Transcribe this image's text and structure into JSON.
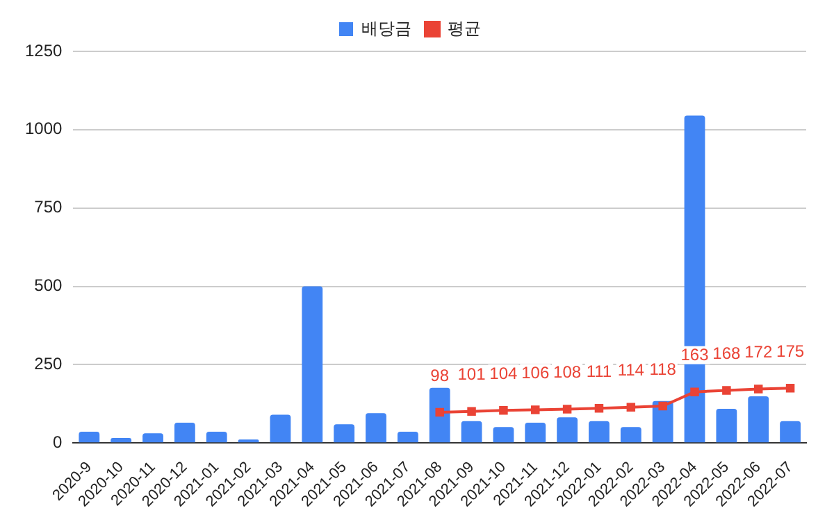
{
  "chart_data": {
    "type": "bar",
    "categories": [
      "2020-9",
      "2020-10",
      "2020-11",
      "2020-12",
      "2021-01",
      "2021-02",
      "2021-03",
      "2021-04",
      "2021-05",
      "2021-06",
      "2021-07",
      "2021-08",
      "2021-09",
      "2021-10",
      "2021-11",
      "2021-12",
      "2022-01",
      "2022-02",
      "2022-03",
      "2022-04",
      "2022-05",
      "2022-06",
      "2022-07"
    ],
    "series": [
      {
        "name": "배당금",
        "type": "bar",
        "color": "#4285f4",
        "values": [
          36,
          16,
          31,
          65,
          36,
          11,
          90,
          500,
          60,
          95,
          36,
          176,
          70,
          51,
          65,
          82,
          70,
          51,
          134,
          1045,
          109,
          149,
          70
        ]
      },
      {
        "name": "평균",
        "type": "line",
        "color": "#ea4335",
        "marker": "square",
        "values": [
          null,
          null,
          null,
          null,
          null,
          null,
          null,
          null,
          null,
          null,
          null,
          98,
          101,
          104,
          106,
          108,
          111,
          114,
          118,
          163,
          168,
          172,
          175
        ],
        "value_labels": [
          null,
          null,
          null,
          null,
          null,
          null,
          null,
          null,
          null,
          null,
          null,
          "98",
          "101",
          "104",
          "106",
          "108",
          "111",
          "114",
          "118",
          "163",
          "168",
          "172",
          "175"
        ]
      }
    ],
    "ylim": [
      0,
      1250
    ],
    "yticks": [
      0,
      250,
      500,
      750,
      1000,
      1250
    ],
    "grid": "y",
    "legend": "top"
  }
}
